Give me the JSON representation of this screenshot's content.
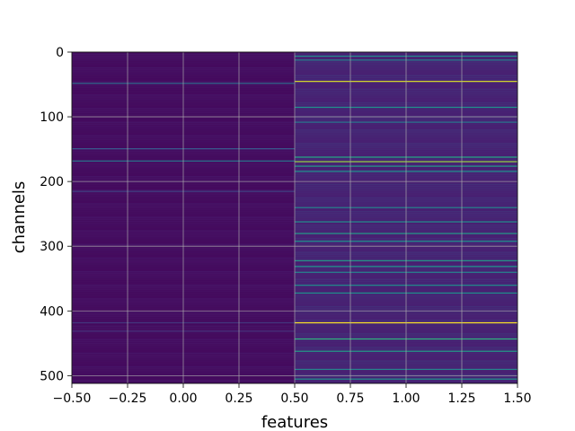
{
  "chart_data": {
    "type": "heatmap",
    "title": "",
    "xlabel": "features",
    "ylabel": "channels",
    "xlim": [
      -0.5,
      1.5
    ],
    "ylim": [
      512,
      0
    ],
    "y_inverted": true,
    "x_ticks": [
      -0.5,
      -0.25,
      0.0,
      0.25,
      0.5,
      0.75,
      1.0,
      1.25,
      1.5
    ],
    "x_tick_labels": [
      "−0.50",
      "−0.25",
      "0.00",
      "0.25",
      "0.50",
      "0.75",
      "1.00",
      "1.25",
      "1.50"
    ],
    "y_ticks": [
      0,
      100,
      200,
      300,
      400,
      500
    ],
    "y_tick_labels": [
      "0",
      "100",
      "200",
      "300",
      "400",
      "500"
    ],
    "grid": true,
    "colormap": "viridis",
    "columns": [
      {
        "feature_index": 0,
        "base_intensity": 0.04,
        "highlighted_rows": [
          {
            "row": 48,
            "intensity": 0.35
          },
          {
            "row": 149,
            "intensity": 0.28
          },
          {
            "row": 168,
            "intensity": 0.4
          },
          {
            "row": 215,
            "intensity": 0.2
          },
          {
            "row": 418,
            "intensity": 0.18
          },
          {
            "row": 431,
            "intensity": 0.16
          }
        ]
      },
      {
        "feature_index": 1,
        "base_intensity": 0.12,
        "highlighted_rows": [
          {
            "row": 6,
            "intensity": 0.5
          },
          {
            "row": 12,
            "intensity": 0.45
          },
          {
            "row": 45,
            "intensity": 0.95
          },
          {
            "row": 85,
            "intensity": 0.5
          },
          {
            "row": 108,
            "intensity": 0.4
          },
          {
            "row": 162,
            "intensity": 0.6
          },
          {
            "row": 169,
            "intensity": 0.85
          },
          {
            "row": 176,
            "intensity": 0.55
          },
          {
            "row": 184,
            "intensity": 0.5
          },
          {
            "row": 240,
            "intensity": 0.45
          },
          {
            "row": 262,
            "intensity": 0.5
          },
          {
            "row": 280,
            "intensity": 0.55
          },
          {
            "row": 292,
            "intensity": 0.5
          },
          {
            "row": 322,
            "intensity": 0.55
          },
          {
            "row": 331,
            "intensity": 0.5
          },
          {
            "row": 340,
            "intensity": 0.45
          },
          {
            "row": 360,
            "intensity": 0.5
          },
          {
            "row": 372,
            "intensity": 0.5
          },
          {
            "row": 418,
            "intensity": 1.0
          },
          {
            "row": 443,
            "intensity": 0.65
          },
          {
            "row": 462,
            "intensity": 0.55
          },
          {
            "row": 490,
            "intensity": 0.45
          },
          {
            "row": 505,
            "intensity": 0.5
          }
        ]
      }
    ]
  }
}
